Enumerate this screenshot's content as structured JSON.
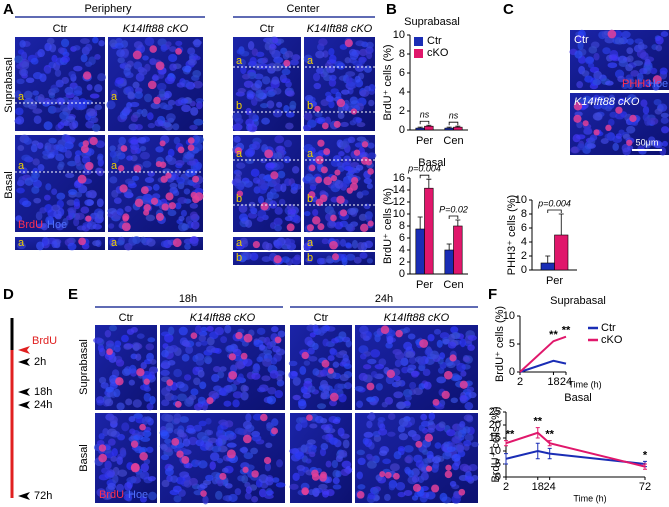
{
  "panel_letters": [
    "A",
    "B",
    "C",
    "D",
    "E",
    "F"
  ],
  "panel_a": {
    "groups": [
      "Periphery",
      "Center"
    ],
    "columns": [
      "Ctr",
      "K14Ift88 cKO"
    ],
    "rows": [
      "Suprabasal",
      "Basal"
    ],
    "regions": [
      "a",
      "b"
    ],
    "stain": [
      "BrdU",
      "Hoe"
    ]
  },
  "panel_c_images": {
    "labels": [
      "Ctr",
      "K14Ift88 cKO"
    ],
    "stain": [
      "PHH3",
      "Hoe"
    ],
    "scale_bar": "50μm"
  },
  "panel_d": {
    "pulse": "BrdU",
    "times": [
      "2h",
      "18h",
      "24h",
      "72h"
    ]
  },
  "panel_e": {
    "times": [
      "18h",
      "24h"
    ],
    "columns": [
      "Ctr",
      "K14Ift88 cKO"
    ],
    "rows": [
      "Suprabasal",
      "Basal"
    ],
    "stain": [
      "BrdU",
      "Hoe"
    ]
  },
  "chart_data": [
    {
      "type": "bar",
      "title": "Suprabasal",
      "ylabel": "BrdU⁺ cells (%)",
      "categories": [
        "Per",
        "Cen"
      ],
      "series": [
        {
          "name": "Ctr",
          "color": "#1a2db5",
          "values": [
            0.2,
            0.2
          ],
          "errors": [
            0.1,
            0.1
          ]
        },
        {
          "name": "cKO",
          "color": "#e0176b",
          "values": [
            0.4,
            0.3
          ],
          "errors": [
            0.1,
            0.1
          ]
        }
      ],
      "ylim": [
        0,
        10
      ],
      "yticks": [
        0,
        2,
        4,
        6,
        8,
        10
      ],
      "annotations": [
        "ns",
        "ns"
      ],
      "legend": "upper left"
    },
    {
      "type": "bar",
      "title": "Basal",
      "ylabel": "BrdU⁺ cells (%)",
      "categories": [
        "Per",
        "Cen"
      ],
      "series": [
        {
          "name": "Ctr",
          "color": "#1a2db5",
          "values": [
            7.5,
            4
          ],
          "errors": [
            2,
            1
          ]
        },
        {
          "name": "cKO",
          "color": "#e0176b",
          "values": [
            14.3,
            8
          ],
          "errors": [
            1.5,
            1
          ]
        }
      ],
      "ylim": [
        0,
        16
      ],
      "yticks": [
        0,
        2,
        4,
        6,
        8,
        10,
        12,
        14,
        16
      ],
      "annotations": [
        "p=0.004",
        "P=0.02"
      ]
    },
    {
      "type": "bar",
      "ylabel": "PHH3⁺ cells (%)",
      "categories": [
        "Per"
      ],
      "series": [
        {
          "name": "Ctr",
          "color": "#1a2db5",
          "values": [
            1
          ],
          "errors": [
            1
          ]
        },
        {
          "name": "cKO",
          "color": "#e0176b",
          "values": [
            5
          ],
          "errors": [
            3
          ]
        }
      ],
      "ylim": [
        0,
        10
      ],
      "yticks": [
        0,
        2,
        4,
        6,
        8,
        10
      ],
      "annotations": [
        "p=0.004"
      ]
    },
    {
      "type": "line",
      "title": "Suprabasal",
      "ylabel": "BrdU⁺ cells (%)",
      "xlabel": "Time (h)",
      "x": [
        2,
        18,
        24
      ],
      "series": [
        {
          "name": "Ctr",
          "color": "#1a2db5",
          "values": [
            0,
            2,
            1.5
          ]
        },
        {
          "name": "cKO",
          "color": "#e0176b",
          "values": [
            0,
            5.5,
            6.3
          ]
        }
      ],
      "xlim": [
        2,
        24
      ],
      "xticks": [
        2,
        18,
        24
      ],
      "ylim": [
        0,
        10
      ],
      "yticks": [
        0,
        5,
        10
      ],
      "annotations": [
        null,
        "**",
        "**"
      ],
      "legend": "right"
    },
    {
      "type": "line",
      "title": "Basal",
      "ylabel": "BrdU⁺ cells (%)",
      "xlabel": "Time (h)",
      "x": [
        2,
        18,
        24,
        72
      ],
      "series": [
        {
          "name": "Ctr",
          "color": "#1a2db5",
          "values": [
            7,
            10,
            9,
            5
          ],
          "errors": [
            2,
            3,
            2,
            1
          ]
        },
        {
          "name": "cKO",
          "color": "#e0176b",
          "values": [
            13,
            17,
            13,
            4
          ],
          "errors": [
            1,
            2,
            1,
            1
          ]
        }
      ],
      "xlim": [
        2,
        72
      ],
      "xticks": [
        2,
        18,
        24,
        72
      ],
      "ylim": [
        0,
        25
      ],
      "yticks": [
        0,
        5,
        10,
        15,
        20,
        25
      ],
      "annotations": [
        "**",
        "**",
        "**",
        "*"
      ]
    }
  ]
}
